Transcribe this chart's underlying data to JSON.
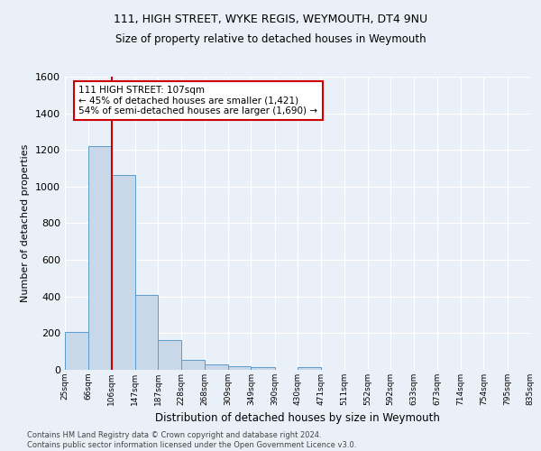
{
  "title1": "111, HIGH STREET, WYKE REGIS, WEYMOUTH, DT4 9NU",
  "title2": "Size of property relative to detached houses in Weymouth",
  "xlabel": "Distribution of detached houses by size in Weymouth",
  "ylabel": "Number of detached properties",
  "footnote": "Contains HM Land Registry data © Crown copyright and database right 2024.\nContains public sector information licensed under the Open Government Licence v3.0.",
  "bar_edges": [
    25,
    66,
    106,
    147,
    187,
    228,
    268,
    309,
    349,
    390,
    430,
    471,
    511,
    552,
    592,
    633,
    673,
    714,
    754,
    795,
    835
  ],
  "bar_heights": [
    205,
    1220,
    1065,
    410,
    163,
    52,
    28,
    22,
    14,
    0,
    14,
    0,
    0,
    0,
    0,
    0,
    0,
    0,
    0,
    0
  ],
  "bar_color": "#c8d8e8",
  "bar_edge_color": "#5b9bcc",
  "property_line_x": 107,
  "annotation_text": "111 HIGH STREET: 107sqm\n← 45% of detached houses are smaller (1,421)\n54% of semi-detached houses are larger (1,690) →",
  "annotation_box_color": "#ffffff",
  "annotation_box_edge": "#cc0000",
  "vline_color": "#cc0000",
  "ylim": [
    0,
    1600
  ],
  "background_color": "#eaf0f8",
  "tick_labels": [
    "25sqm",
    "66sqm",
    "106sqm",
    "147sqm",
    "187sqm",
    "228sqm",
    "268sqm",
    "309sqm",
    "349sqm",
    "390sqm",
    "430sqm",
    "471sqm",
    "511sqm",
    "552sqm",
    "592sqm",
    "633sqm",
    "673sqm",
    "714sqm",
    "754sqm",
    "795sqm",
    "835sqm"
  ],
  "yticks": [
    0,
    200,
    400,
    600,
    800,
    1000,
    1200,
    1400,
    1600
  ]
}
